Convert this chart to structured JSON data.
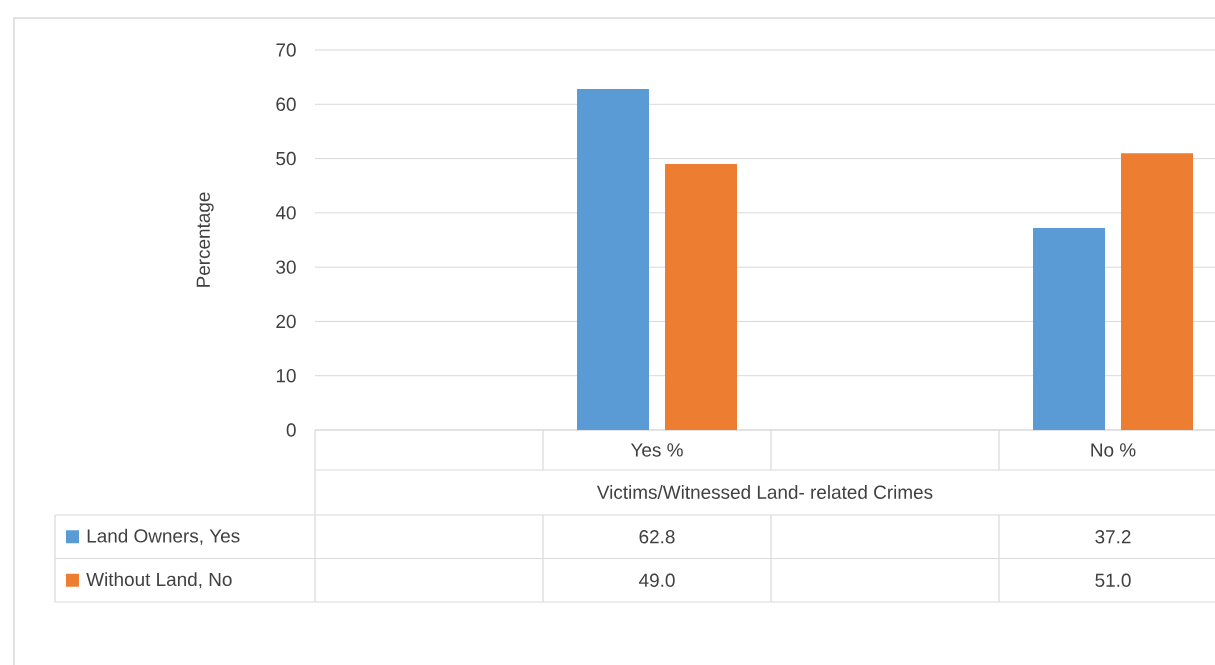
{
  "chart_data": {
    "type": "bar",
    "categories": [
      null,
      "Yes %",
      null,
      "No %"
    ],
    "xlabel": "Victims/Witnessed Land- related Crimes",
    "ylabel": "Percentage",
    "ylim": [
      0,
      70
    ],
    "yticks": [
      0,
      10,
      20,
      30,
      40,
      50,
      60,
      70
    ],
    "grid": "y",
    "legend": "bottom",
    "series": [
      {
        "name": "Land Owners, Yes",
        "color": "#5b9bd5",
        "values": [
          null,
          62.8,
          null,
          37.2
        ],
        "value_labels": [
          null,
          "62.8",
          null,
          "37.2"
        ]
      },
      {
        "name": "Without Land, No",
        "color": "#ed7d31",
        "values": [
          null,
          49.0,
          null,
          51.0
        ],
        "value_labels": [
          null,
          "49.0",
          null,
          "51.0"
        ]
      }
    ]
  }
}
